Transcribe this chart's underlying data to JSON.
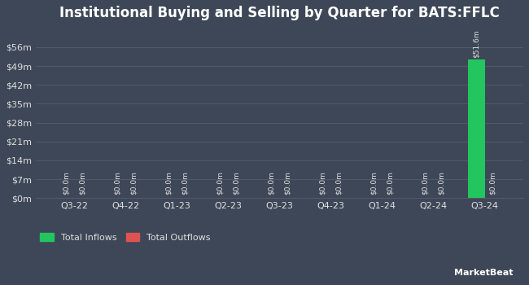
{
  "title": "Institutional Buying and Selling by Quarter for BATS:FFLC",
  "quarters": [
    "Q3-22",
    "Q4-22",
    "Q1-23",
    "Q2-23",
    "Q3-23",
    "Q4-23",
    "Q1-24",
    "Q2-24",
    "Q3-24"
  ],
  "inflows": [
    0.0,
    0.0,
    0.0,
    0.0,
    0.0,
    0.0,
    0.0,
    0.0,
    51.6
  ],
  "outflows": [
    0.0,
    0.0,
    0.0,
    0.0,
    0.0,
    0.0,
    0.0,
    0.0,
    0.0
  ],
  "bar_labels_inflow": [
    "$0.0m",
    "$0.0m",
    "$0.0m",
    "$0.0m",
    "$0.0m",
    "$0.0m",
    "$0.0m",
    "$0.0m",
    "$51.6m"
  ],
  "bar_labels_outflow": [
    "$0.0m",
    "$0.0m",
    "$0.0m",
    "$0.0m",
    "$0.0m",
    "$0.0m",
    "$0.0m",
    "$0.0m",
    "$0.0m"
  ],
  "inflow_color": "#22c55e",
  "outflow_color": "#e05252",
  "bg_color": "#3d4757",
  "plot_bg_color": "#3d4757",
  "grid_color": "#505a6a",
  "text_color": "#e0e0e0",
  "title_color": "#ffffff",
  "ylim": [
    0,
    63
  ],
  "yticks": [
    0,
    7,
    14,
    21,
    28,
    35,
    42,
    49,
    56
  ],
  "ytick_labels": [
    "$0m",
    "$7m",
    "$14m",
    "$21m",
    "$28m",
    "$35m",
    "$42m",
    "$49m",
    "$56m"
  ],
  "bar_width": 0.32,
  "legend_inflow": "Total Inflows",
  "legend_outflow": "Total Outflows",
  "label_fontsize": 6.5,
  "tick_fontsize": 8,
  "title_fontsize": 12
}
